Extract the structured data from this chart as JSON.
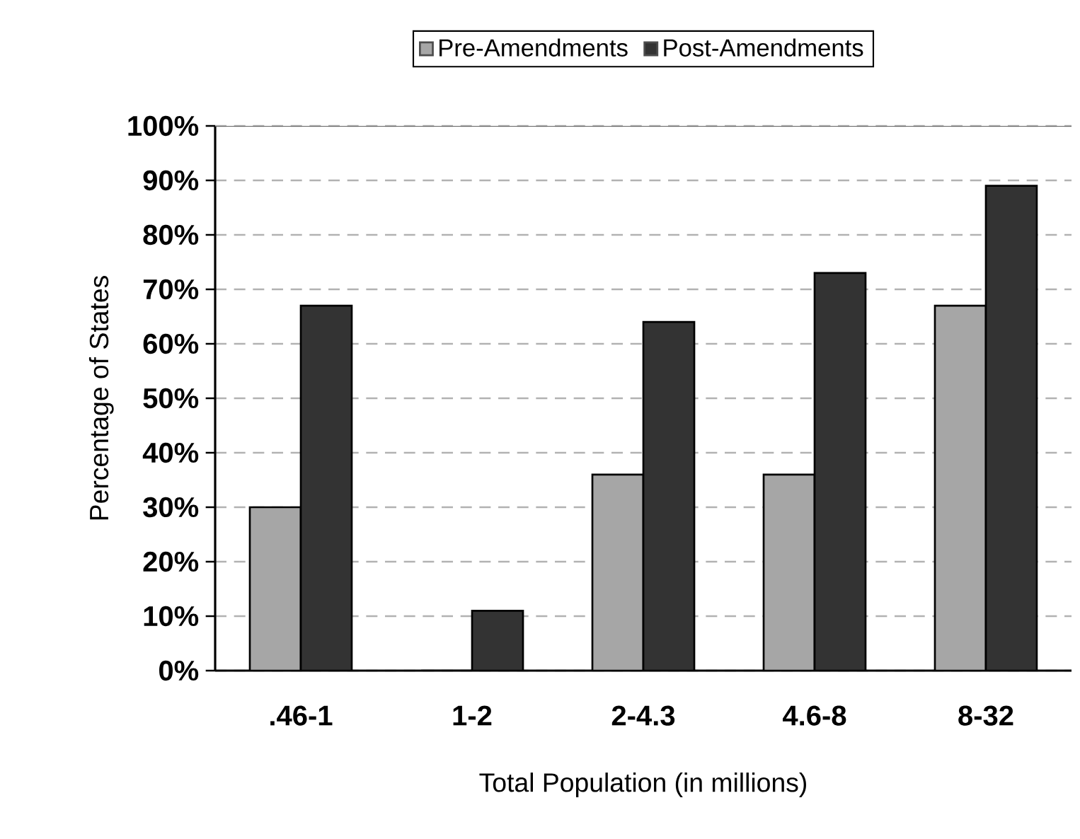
{
  "chart_data": {
    "type": "bar",
    "xlabel": "Total Population (in millions)",
    "ylabel": "Percentage of States",
    "categories": [
      ".46-1",
      "1-2",
      "2-4.3",
      "4.6-8",
      "8-32"
    ],
    "series": [
      {
        "name": "Pre-Amendments",
        "color": "#a6a6a6",
        "values": [
          30,
          0,
          36,
          36,
          67
        ]
      },
      {
        "name": "Post-Amendments",
        "color": "#333333",
        "values": [
          67,
          11,
          64,
          73,
          89
        ]
      }
    ],
    "ylim": [
      0,
      100
    ],
    "yticks": [
      {
        "value": 0,
        "label": "0%"
      },
      {
        "value": 10,
        "label": "10%"
      },
      {
        "value": 20,
        "label": "20%"
      },
      {
        "value": 30,
        "label": "30%"
      },
      {
        "value": 40,
        "label": "40%"
      },
      {
        "value": 50,
        "label": "50%"
      },
      {
        "value": 60,
        "label": "60%"
      },
      {
        "value": 70,
        "label": "70%"
      },
      {
        "value": 80,
        "label": "80%"
      },
      {
        "value": 90,
        "label": "90%"
      },
      {
        "value": 100,
        "label": "100%"
      }
    ],
    "grid": "y",
    "legend": "top"
  }
}
